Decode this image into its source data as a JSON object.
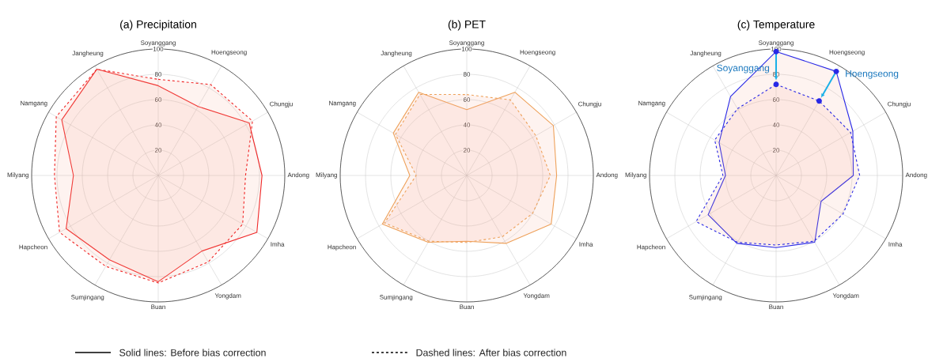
{
  "chart_data": [
    {
      "type": "radar",
      "title": "(a) Precipitation",
      "categories": [
        "Soyanggang",
        "Hoengseong",
        "Chungju",
        "Andong",
        "Imha",
        "Yongdam",
        "Buan",
        "Sumjingang",
        "Hapcheon",
        "Milyang",
        "Namgang",
        "Jangheung"
      ],
      "series": [
        {
          "color": "#f02828",
          "line_style": "solid",
          "values": [
            71,
            63,
            83,
            82,
            90,
            69,
            84,
            77,
            84,
            67,
            88,
            97
          ]
        },
        {
          "color": "#f02828",
          "line_style": "dashed",
          "values": [
            76,
            83,
            86,
            69,
            77,
            79,
            85,
            83,
            90,
            82,
            93,
            97
          ]
        }
      ],
      "ylim": [
        0,
        100
      ],
      "yticks": [
        20,
        40,
        60,
        80,
        100
      ],
      "grid": true,
      "marker": "none",
      "annotations": [
        "Solid lines: Before bias correction",
        "Dashed lines: After bias correction"
      ]
    },
    {
      "type": "radar",
      "title": "(b) PET",
      "categories": [
        "Soyanggang",
        "Hoengseong",
        "Chungju",
        "Andong",
        "Imha",
        "Yongdam",
        "Buan",
        "Sumjingang",
        "Hapcheon",
        "Milyang",
        "Namgang",
        "Jangheung"
      ],
      "series": [
        {
          "color": "#eea15a",
          "line_style": "solid",
          "values": [
            52,
            76,
            79,
            71,
            77,
            62,
            52,
            61,
            77,
            45,
            67,
            76
          ]
        },
        {
          "color": "#eea15a",
          "line_style": "dashed",
          "values": [
            64,
            69,
            63,
            66,
            60,
            56,
            53,
            60,
            75,
            40,
            65,
            74
          ]
        }
      ],
      "ylim": [
        0,
        100
      ],
      "yticks": [
        20,
        40,
        60,
        80,
        100
      ],
      "grid": true,
      "marker": "none"
    },
    {
      "type": "radar",
      "title": "(c) Temperature",
      "categories": [
        "Soyanggang",
        "Hoengseong",
        "Chungju",
        "Andong",
        "Imha",
        "Yongdam",
        "Buan",
        "Sumjingang",
        "Hapcheon",
        "Milyang",
        "Namgang",
        "Jangheung"
      ],
      "series": [
        {
          "color": "#2828e6",
          "line_style": "solid",
          "values": [
            98,
            95,
            70,
            61,
            41,
            61,
            57,
            62,
            62,
            40,
            52,
            72
          ]
        },
        {
          "color": "#2828e6",
          "line_style": "dashed",
          "values": [
            72,
            68,
            68,
            66,
            61,
            60,
            55,
            61,
            73,
            42,
            56,
            61
          ]
        }
      ],
      "ylim": [
        0,
        100
      ],
      "yticks": [
        20,
        40,
        60,
        80,
        100
      ],
      "grid": true,
      "marker": "none",
      "annotations": [
        {
          "text": "Soyanggang",
          "x": "Soyanggang"
        },
        {
          "text": "Hoengseong",
          "x": "Hoengseong"
        }
      ]
    }
  ]
}
